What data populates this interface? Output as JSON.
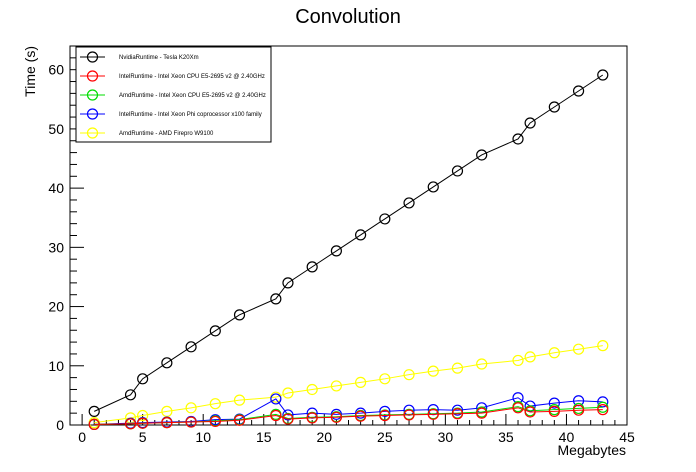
{
  "chart_data": {
    "type": "line",
    "title": "Convolution",
    "xlabel": "Megabytes",
    "ylabel": "Time (s)",
    "xlim": [
      -1,
      45
    ],
    "ylim": [
      0,
      64
    ],
    "x_ticks": [
      0,
      5,
      10,
      15,
      20,
      25,
      30,
      35,
      40,
      45
    ],
    "y_ticks": [
      0,
      10,
      20,
      30,
      40,
      50,
      60
    ],
    "grid": false,
    "legend_position": "top-left",
    "series": [
      {
        "name": "NvidiaRuntime - Tesla K20Xm",
        "color": "#000000",
        "x": [
          1,
          4,
          5,
          7,
          9,
          11,
          13,
          16,
          17,
          19,
          21,
          23,
          25,
          27,
          29,
          31,
          33,
          36,
          37,
          39,
          41,
          43
        ],
        "y": [
          2.3,
          5.1,
          7.8,
          10.5,
          13.2,
          15.9,
          18.6,
          21.3,
          24.0,
          26.7,
          29.4,
          32.1,
          34.8,
          37.5,
          40.2,
          42.9,
          45.6,
          48.3,
          51.0,
          53.7,
          56.4,
          59.1
        ]
      },
      {
        "name": "IntelRuntime - Intel Xeon CPU E5-2695 v2 @ 2.40GHz",
        "color": "#ff0000",
        "x": [
          1,
          4,
          5,
          7,
          9,
          11,
          13,
          16,
          17,
          19,
          21,
          23,
          25,
          27,
          29,
          31,
          33,
          36,
          37,
          39,
          41,
          43
        ],
        "y": [
          0.1,
          0.2,
          0.3,
          0.4,
          0.5,
          0.6,
          0.8,
          1.6,
          1.0,
          1.2,
          1.3,
          1.5,
          1.6,
          1.7,
          1.8,
          1.9,
          2.0,
          2.9,
          2.2,
          2.3,
          2.5,
          2.6
        ]
      },
      {
        "name": "AmdRuntime - Intel Xeon CPU E5-2695 v2 @ 2.40GHz",
        "color": "#00dd00",
        "x": [
          1,
          4,
          5,
          7,
          9,
          11,
          13,
          16,
          17,
          19,
          21,
          23,
          25,
          27,
          29,
          31,
          33,
          36,
          37,
          39,
          41,
          43
        ],
        "y": [
          0.1,
          0.2,
          0.3,
          0.4,
          0.5,
          0.7,
          0.9,
          1.8,
          1.1,
          1.3,
          1.4,
          1.6,
          1.7,
          1.8,
          1.9,
          2.0,
          2.2,
          3.1,
          2.4,
          2.6,
          2.8,
          3.0
        ]
      },
      {
        "name": "IntelRuntime - Intel Xeon Phi coprocessor x100 family",
        "color": "#0000ff",
        "x": [
          1,
          4,
          5,
          7,
          9,
          11,
          13,
          16,
          17,
          19,
          21,
          23,
          25,
          27,
          29,
          31,
          33,
          36,
          37,
          39,
          41,
          43
        ],
        "y": [
          0.1,
          0.3,
          0.4,
          0.5,
          0.6,
          0.9,
          1.0,
          4.4,
          1.7,
          2.0,
          1.8,
          2.0,
          2.3,
          2.5,
          2.6,
          2.5,
          2.9,
          4.6,
          3.2,
          3.7,
          4.1,
          3.9
        ]
      },
      {
        "name": "AmdRuntime - AMD Firepro W9100",
        "color": "#ffff00",
        "x": [
          1,
          4,
          5,
          7,
          9,
          11,
          13,
          16,
          17,
          19,
          21,
          23,
          25,
          27,
          29,
          31,
          33,
          36,
          37,
          39,
          41,
          43
        ],
        "y": [
          0.4,
          1.2,
          1.6,
          2.3,
          2.9,
          3.6,
          4.2,
          4.7,
          5.4,
          6.0,
          6.6,
          7.2,
          7.8,
          8.5,
          9.1,
          9.6,
          10.3,
          10.9,
          11.5,
          12.2,
          12.8,
          13.4
        ]
      }
    ]
  }
}
